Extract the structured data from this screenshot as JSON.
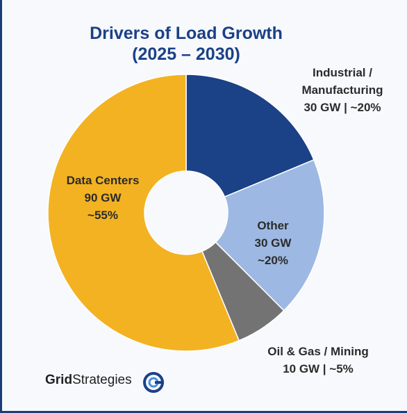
{
  "chart_data": {
    "type": "donut",
    "title": "Drivers of Load Growth",
    "subtitle": "(2025 – 2030)",
    "categories": [
      "Industrial / Manufacturing",
      "Other",
      "Oil & Gas / Mining",
      "Data Centers"
    ],
    "values": [
      30,
      30,
      10,
      90
    ],
    "value_labels": [
      "30 GW | ~20%",
      "30 GW ~20%",
      "10 GW | ~5%",
      "90 GW ~55%"
    ],
    "colors": [
      "#1b4186",
      "#9db9e3",
      "#737373",
      "#f3b222"
    ],
    "logo": [
      "Grid",
      "Strategies"
    ]
  }
}
